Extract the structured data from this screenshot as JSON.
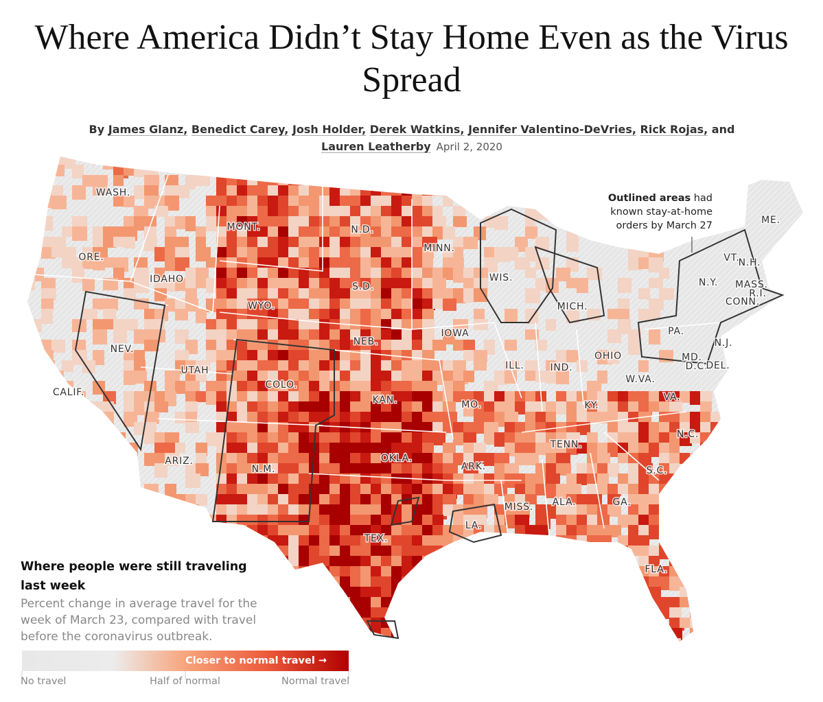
{
  "header": {
    "title": "Where America Didn’t Stay Home Even as the Virus Spread",
    "byline_prefix": "By",
    "authors": [
      "James Glanz",
      "Benedict Carey",
      "Josh Holder",
      "Derek Watkins",
      "Jennifer Valentino-DeVries",
      "Rick Rojas"
    ],
    "connector": "and",
    "last_author": "Lauren Leatherby",
    "date": "April 2, 2020"
  },
  "map": {
    "state_labels": [
      "WASH.",
      "ORE.",
      "IDAHO",
      "MONT.",
      "WYO.",
      "NEV.",
      "UTAH",
      "CALIF.",
      "COLO.",
      "ARIZ.",
      "N.M.",
      "N.D.",
      "S.D.",
      "NEB.",
      "KAN.",
      "OKLA.",
      "TEX.",
      "MINN.",
      "IOWA",
      "MO.",
      "ARK.",
      "LA.",
      "WIS.",
      "ILL.",
      "MICH.",
      "IND.",
      "OHIO",
      "KY.",
      "TENN.",
      "MISS.",
      "ALA.",
      "GA.",
      "FLA.",
      "S.C.",
      "N.C.",
      "VA.",
      "W.VA.",
      "MD.",
      "D.C.",
      "DEL.",
      "PA.",
      "N.J.",
      "N.Y.",
      "CONN.",
      "R.I.",
      "MASS.",
      "VT.",
      "N.H.",
      "ME."
    ],
    "annotation": {
      "bold": "Outlined areas",
      "text": "had known stay-at-home orders by March 27"
    }
  },
  "legend": {
    "title": "Where people were still traveling last week",
    "description": "Percent change in average travel for the week of March 23, compared with travel before the coronavirus outbreak.",
    "bar_label": "Closer to normal travel →",
    "scale_labels": [
      "No travel",
      "Half of normal",
      "Normal travel"
    ]
  }
}
